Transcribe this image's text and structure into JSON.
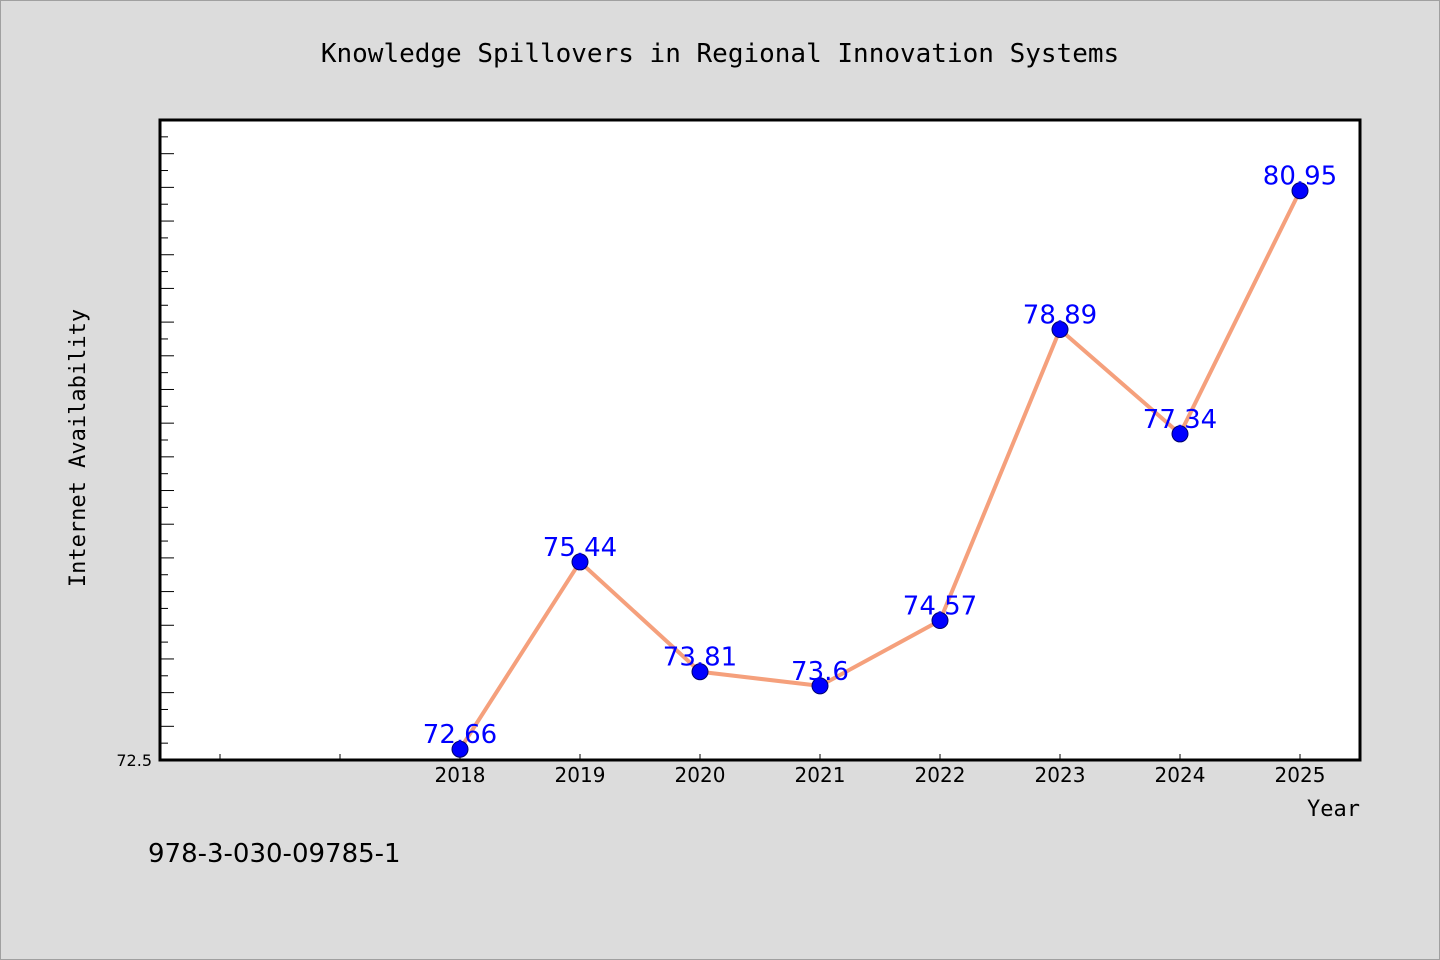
{
  "chart_data": {
    "type": "line",
    "title": "Knowledge Spillovers in Regional Innovation Systems",
    "xlabel": "Year",
    "ylabel": "Internet Availability",
    "x": [
      "2018",
      "2019",
      "2020",
      "2021",
      "2022",
      "2023",
      "2024",
      "2025"
    ],
    "series": [
      {
        "values": [
          72.66,
          75.44,
          73.81,
          73.6,
          74.57,
          78.89,
          77.34,
          80.95
        ],
        "labels": [
          "72.66",
          "75.44",
          "73.81",
          "73.6",
          "74.57",
          "78.89",
          "77.34",
          "80.95"
        ],
        "line_color": "#f5a07c",
        "marker_color": "#0000ff"
      }
    ],
    "ytick_labels": [
      "72.5"
    ],
    "ylim": [
      72.5,
      82.0
    ],
    "grid": false,
    "background": "#dcdcdc",
    "plot_background": "#ffffff"
  },
  "footer_text": "978-3-030-09785-1"
}
